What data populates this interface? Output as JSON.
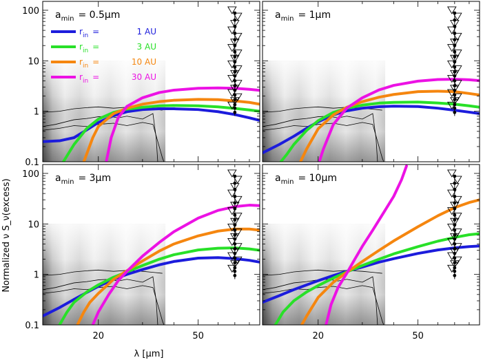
{
  "chart_data": {
    "type": "line",
    "xlabel": "λ [μm]",
    "ylabel": "Normalized ν S_ν(excess)",
    "x_scale": "log",
    "y_scale": "log",
    "xlim": [
      12,
      88
    ],
    "ylim": [
      0.1,
      150
    ],
    "xticks": [
      {
        "value": 20,
        "label": "20"
      },
      {
        "value": 50,
        "label": "50"
      }
    ],
    "yticks": [
      {
        "value": 0.1,
        "label": "0.1"
      },
      {
        "value": 1,
        "label": "1"
      },
      {
        "value": 10,
        "label": "10"
      },
      {
        "value": 100,
        "label": "100"
      }
    ],
    "legend": {
      "placement": "top-left (first panel)",
      "prefix": "r",
      "subscript": "in",
      "equals": "=",
      "entries": [
        {
          "value": "1 AU",
          "color": "#1c1cdc"
        },
        {
          "value": "3 AU",
          "color": "#28e028"
        },
        {
          "value": "10 AU",
          "color": "#f5860f"
        },
        {
          "value": "30 AU",
          "color": "#ec12e4"
        }
      ]
    },
    "colors": {
      "r1": "#1c1cdc",
      "r3": "#28e028",
      "r10": "#f5860f",
      "r30": "#ec12e4",
      "background_band": "#9a9a9a",
      "contour": "#000000"
    },
    "background_band": {
      "x_range": [
        12,
        37
      ],
      "y_range": [
        0.1,
        10
      ]
    },
    "observations": {
      "x": 70,
      "points": [
        0.95,
        1.15,
        1.35,
        1.7,
        2.1,
        2.6,
        3.2,
        4.0,
        5.0,
        6.0,
        7.5,
        9.5,
        12.0,
        15.0,
        20.0,
        26.0,
        35.0,
        48.0,
        64.0,
        88.0
      ],
      "upper_limits": [
        1.3,
        1.6,
        1.9,
        2.3,
        2.8,
        3.5,
        4.4,
        5.5,
        6.8,
        8.5,
        11.0,
        14.0,
        18.0,
        23.0,
        30.0,
        40.0,
        54.0,
        75.0,
        100.0
      ]
    },
    "panels": [
      {
        "a_min_label": "a",
        "a_min_sub": "min",
        "a_min_value": "= 0.5μm",
        "series": [
          {
            "key": "r1",
            "x": [
              12,
              14,
              16,
              18,
              20,
              23,
              26,
              30,
              35,
              40,
              50,
              60,
              70,
              80,
              88
            ],
            "y": [
              0.25,
              0.26,
              0.3,
              0.43,
              0.6,
              0.82,
              0.98,
              1.08,
              1.12,
              1.12,
              1.08,
              0.98,
              0.86,
              0.74,
              0.66
            ]
          },
          {
            "key": "r3",
            "x": [
              14.5,
              16,
              18,
              20,
              23,
              26,
              30,
              35,
              40,
              50,
              60,
              70,
              80,
              88
            ],
            "y": [
              0.1,
              0.22,
              0.46,
              0.7,
              0.95,
              1.1,
              1.2,
              1.28,
              1.3,
              1.28,
              1.22,
              1.14,
              1.06,
              1.0
            ]
          },
          {
            "key": "r10",
            "x": [
              17.5,
              19,
              20,
              23,
              26,
              30,
              35,
              40,
              50,
              60,
              70,
              80,
              88
            ],
            "y": [
              0.1,
              0.3,
              0.5,
              0.9,
              1.15,
              1.38,
              1.55,
              1.65,
              1.72,
              1.7,
              1.6,
              1.5,
              1.38
            ]
          },
          {
            "key": "r30",
            "x": [
              21.5,
              22.5,
              24,
              26,
              30,
              35,
              40,
              50,
              60,
              70,
              80,
              88
            ],
            "y": [
              0.1,
              0.3,
              0.75,
              1.25,
              1.85,
              2.35,
              2.62,
              2.85,
              2.9,
              2.85,
              2.72,
              2.6
            ]
          }
        ]
      },
      {
        "a_min_label": "a",
        "a_min_sub": "min",
        "a_min_value": "= 1μm",
        "series": [
          {
            "key": "r1",
            "x": [
              12,
              14,
              16,
              18,
              20,
              23,
              26,
              30,
              35,
              40,
              50,
              60,
              70,
              80,
              88
            ],
            "y": [
              0.15,
              0.22,
              0.32,
              0.46,
              0.62,
              0.85,
              1.02,
              1.15,
              1.23,
              1.26,
              1.24,
              1.15,
              1.05,
              0.96,
              0.9
            ]
          },
          {
            "key": "r3",
            "x": [
              14.2,
              15,
              16,
              18,
              20,
              23,
              26,
              30,
              35,
              40,
              50,
              60,
              70,
              80,
              88
            ],
            "y": [
              0.1,
              0.14,
              0.22,
              0.42,
              0.65,
              0.95,
              1.15,
              1.32,
              1.45,
              1.5,
              1.52,
              1.46,
              1.38,
              1.28,
              1.2
            ]
          },
          {
            "key": "r10",
            "x": [
              17,
              18,
              20,
              23,
              26,
              30,
              35,
              40,
              50,
              60,
              70,
              80,
              88
            ],
            "y": [
              0.1,
              0.18,
              0.45,
              0.85,
              1.2,
              1.55,
              1.9,
              2.15,
              2.45,
              2.5,
              2.45,
              2.25,
              2.1
            ]
          },
          {
            "key": "r30",
            "x": [
              20.2,
              21,
              23,
              26,
              30,
              35,
              40,
              50,
              60,
              70,
              80,
              88
            ],
            "y": [
              0.1,
              0.18,
              0.55,
              1.15,
              1.85,
              2.65,
              3.25,
              3.95,
              4.25,
              4.3,
              4.2,
              4.05
            ]
          }
        ]
      },
      {
        "a_min_label": "a",
        "a_min_sub": "min",
        "a_min_value": "= 3μm",
        "series": [
          {
            "key": "r1",
            "x": [
              12,
              14,
              16,
              18,
              20,
              23,
              26,
              30,
              35,
              40,
              50,
              60,
              70,
              80,
              88
            ],
            "y": [
              0.15,
              0.22,
              0.32,
              0.44,
              0.58,
              0.8,
              1.0,
              1.25,
              1.55,
              1.8,
              2.1,
              2.15,
              2.05,
              1.9,
              1.75
            ]
          },
          {
            "key": "r3",
            "x": [
              14,
              15,
              16,
              18,
              20,
              23,
              26,
              30,
              35,
              40,
              50,
              60,
              70,
              80,
              88
            ],
            "y": [
              0.1,
              0.18,
              0.28,
              0.45,
              0.62,
              0.88,
              1.12,
              1.5,
              2.0,
              2.45,
              3.05,
              3.3,
              3.35,
              3.2,
              3.0
            ]
          },
          {
            "key": "r10",
            "x": [
              16.5,
              17.5,
              18.5,
              20,
              23,
              26,
              30,
              35,
              40,
              50,
              60,
              70,
              80,
              88
            ],
            "y": [
              0.1,
              0.18,
              0.28,
              0.42,
              0.8,
              1.18,
              1.85,
              2.9,
              4.0,
              5.8,
              7.2,
              7.9,
              7.9,
              7.5
            ]
          },
          {
            "key": "r30",
            "x": [
              19,
              20,
              22,
              24,
              26,
              30,
              35,
              40,
              50,
              60,
              70,
              80,
              88
            ],
            "y": [
              0.1,
              0.18,
              0.4,
              0.75,
              1.15,
              2.3,
              4.3,
              7.0,
              13.0,
              18.5,
              22.0,
              23.5,
              23.0
            ]
          }
        ]
      },
      {
        "a_min_label": "a",
        "a_min_sub": "min",
        "a_min_value": "= 10μm",
        "series": [
          {
            "key": "r1",
            "x": [
              12,
              14,
              16,
              18,
              20,
              23,
              26,
              30,
              35,
              40,
              50,
              60,
              70,
              80,
              88
            ],
            "y": [
              0.28,
              0.38,
              0.5,
              0.62,
              0.75,
              0.95,
              1.15,
              1.4,
              1.75,
              2.05,
              2.6,
              3.05,
              3.35,
              3.55,
              3.65
            ]
          },
          {
            "key": "r3",
            "x": [
              13.5,
              14.5,
              16,
              18,
              20,
              23,
              26,
              30,
              35,
              40,
              50,
              60,
              70,
              80,
              88
            ],
            "y": [
              0.1,
              0.18,
              0.3,
              0.45,
              0.6,
              0.85,
              1.12,
              1.5,
              2.0,
              2.55,
              3.55,
              4.55,
              5.4,
              6.1,
              6.4
            ]
          },
          {
            "key": "r10",
            "x": [
              17.2,
              18,
              20,
              23,
              26,
              30,
              35,
              40,
              50,
              60,
              70,
              80,
              88
            ],
            "y": [
              0.1,
              0.15,
              0.35,
              0.7,
              1.1,
              1.8,
              3.0,
              4.6,
              8.8,
              14.5,
              21.0,
              26.5,
              30.0
            ]
          },
          {
            "key": "r30",
            "x": [
              21.5,
              22.5,
              24,
              26,
              28,
              30,
              33,
              36,
              40,
              43,
              45
            ],
            "y": [
              0.1,
              0.25,
              0.55,
              1.05,
              2.0,
              3.6,
              7.5,
              15.0,
              35.0,
              75.0,
              140.0
            ]
          }
        ]
      }
    ]
  }
}
